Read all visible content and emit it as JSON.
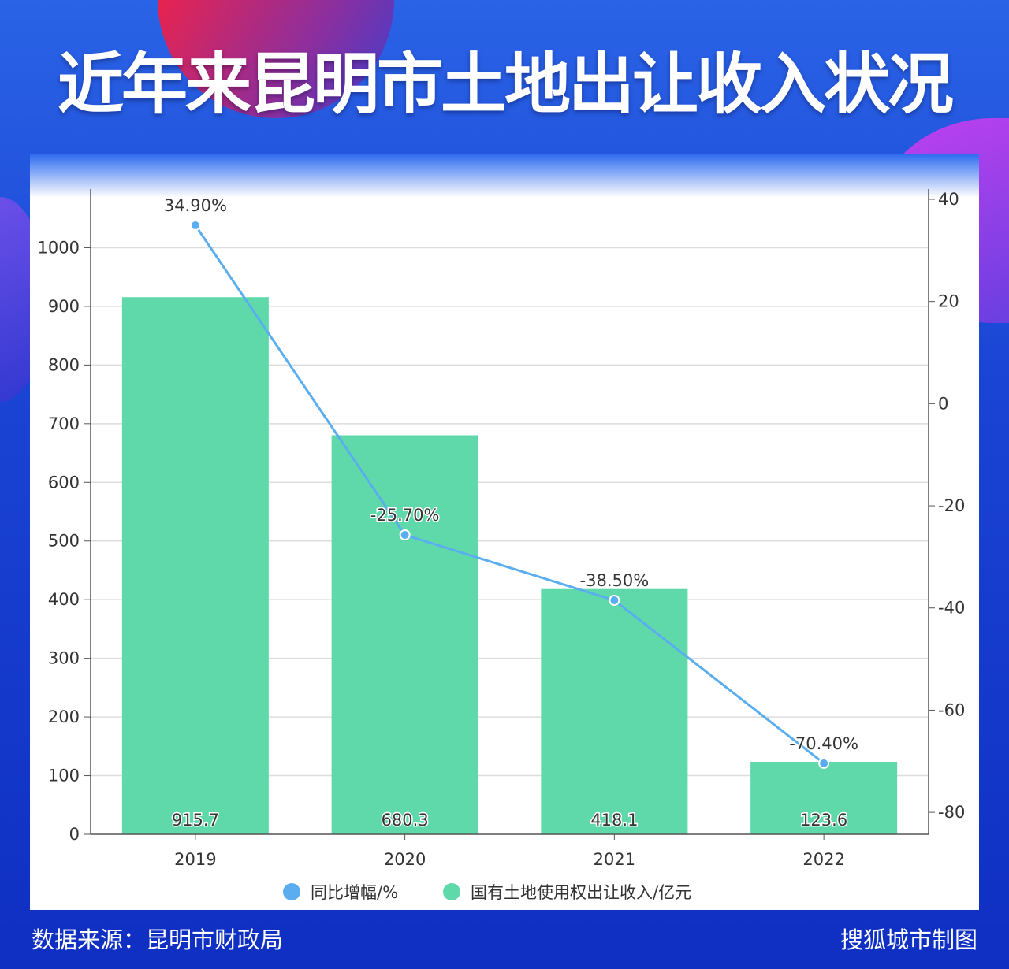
{
  "title": "近年来昆明市土地出让收入状况",
  "footer": {
    "source": "数据来源：昆明市财政局",
    "credit": "搜狐城市制图"
  },
  "chart_data": {
    "type": "bar+line",
    "categories": [
      "2019",
      "2020",
      "2021",
      "2022"
    ],
    "series": [
      {
        "name": "国有土地使用权出让收入/亿元",
        "type": "bar",
        "axis": "left",
        "color": "#5fd9a9",
        "values": [
          915.7,
          680.3,
          418.1,
          123.6
        ],
        "labels": [
          "915.7",
          "680.3",
          "418.1",
          "123.6"
        ]
      },
      {
        "name": "同比增幅/%",
        "type": "line",
        "axis": "right",
        "color": "#5aaef0",
        "values": [
          34.9,
          -25.7,
          -38.5,
          -70.4
        ],
        "labels": [
          "34.90%",
          "-25.70%",
          "-38.50%",
          "-70.40%"
        ]
      }
    ],
    "left_axis": {
      "ylim": [
        0,
        1100
      ],
      "ticks": [
        "0",
        "100",
        "200",
        "300",
        "400",
        "500",
        "600",
        "700",
        "800",
        "900",
        "1000"
      ]
    },
    "right_axis": {
      "ylim": [
        -84.3,
        42
      ],
      "ticks": [
        "40",
        "20",
        "0",
        "-20",
        "-40",
        "-60",
        "-80"
      ]
    },
    "legend": [
      "同比增幅/%",
      "国有土地使用权出让收入/亿元"
    ],
    "legend_position": "bottom",
    "grid": true
  }
}
